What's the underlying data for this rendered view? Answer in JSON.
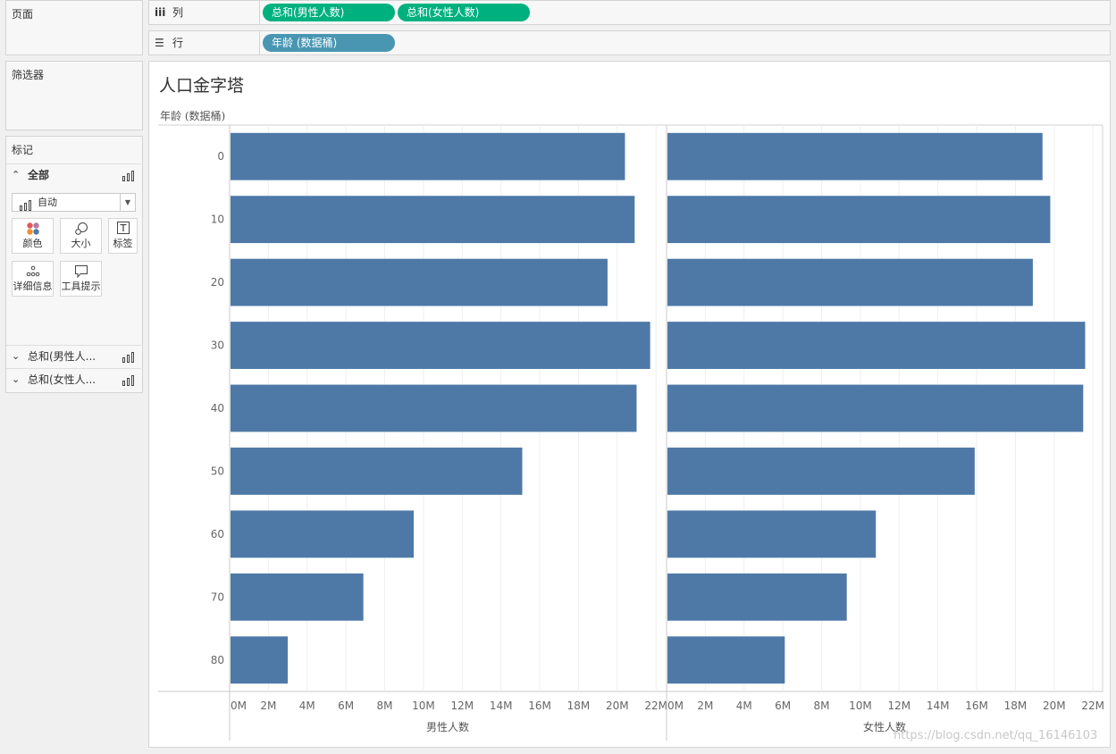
{
  "pages_panel": {
    "title": "页面"
  },
  "filters_panel": {
    "title": "筛选器"
  },
  "marks_panel": {
    "title": "标记",
    "all_label": "全部",
    "mark_type": "自动",
    "buttons": [
      {
        "label": "颜色",
        "icon": "color-icon"
      },
      {
        "label": "大小",
        "icon": "size-icon"
      },
      {
        "label": "标签",
        "icon": "text-label-icon"
      },
      {
        "label": "详细信息",
        "icon": "detail-icon"
      },
      {
        "label": "工具提示",
        "icon": "tooltip-icon"
      }
    ],
    "measure_cards": [
      {
        "label": "总和(男性人..."
      },
      {
        "label": "总和(女性人..."
      }
    ]
  },
  "columns_shelf": {
    "label": "列",
    "pills": [
      "总和(男性人数)",
      "总和(女性人数)"
    ]
  },
  "rows_shelf": {
    "label": "行",
    "pills": [
      "年龄 (数据桶)"
    ]
  },
  "colors": {
    "bar": "#4e79a7",
    "pill_measure": "#00b180",
    "pill_dimension": "#4996b2"
  },
  "chart": {
    "title": "人口金字塔",
    "row_header": "年龄 (数据桶)"
  },
  "chart_data": {
    "type": "bar",
    "orientation": "horizontal",
    "title": "人口金字塔",
    "ylabel": "年龄 (数据桶)",
    "categories": [
      "0",
      "10",
      "20",
      "30",
      "40",
      "50",
      "60",
      "70",
      "80"
    ],
    "x_ticks": [
      "0M",
      "2M",
      "4M",
      "6M",
      "8M",
      "10M",
      "12M",
      "14M",
      "16M",
      "18M",
      "20M",
      "22M"
    ],
    "xlim": [
      0,
      22.5
    ],
    "unit": "M",
    "series": [
      {
        "name": "男性人数",
        "values": [
          20.4,
          20.9,
          19.5,
          21.7,
          21.0,
          15.1,
          9.5,
          6.9,
          3.0
        ]
      },
      {
        "name": "女性人数",
        "values": [
          19.4,
          19.8,
          18.9,
          21.6,
          21.5,
          15.9,
          10.8,
          9.3,
          6.1
        ]
      }
    ],
    "grid": true
  },
  "watermark": "https://blog.csdn.net/qq_16146103"
}
